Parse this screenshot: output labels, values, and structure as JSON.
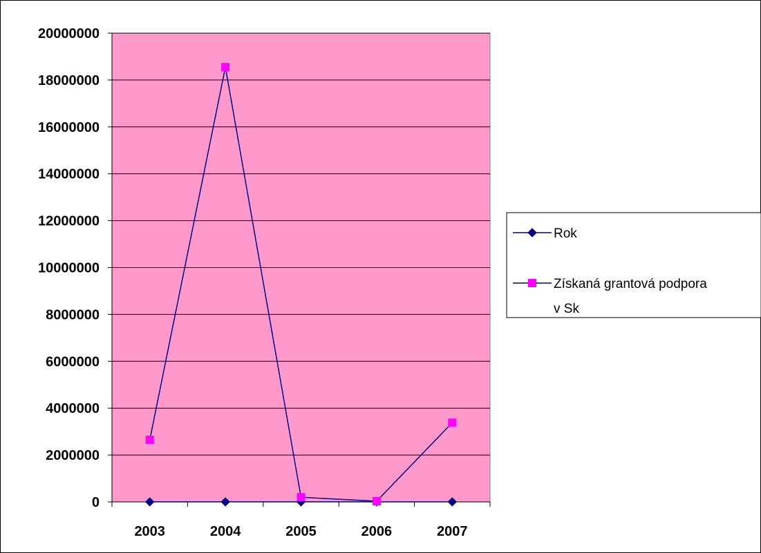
{
  "chart_data": {
    "type": "line",
    "categories": [
      "2003",
      "2004",
      "2005",
      "2006",
      "2007"
    ],
    "ylim": [
      0,
      20000000
    ],
    "yticks": [
      "0",
      "2000000",
      "4000000",
      "6000000",
      "8000000",
      "10000000",
      "12000000",
      "14000000",
      "16000000",
      "18000000",
      "20000000"
    ],
    "grid": true,
    "legend_placement": "right",
    "plot_background": "#FF99CC",
    "series": [
      {
        "name": "Rok",
        "values": [
          2003,
          2004,
          2005,
          2006,
          2007
        ],
        "color": "#000080",
        "marker": "diamond",
        "marker_color": "#000080"
      },
      {
        "name": "Získaná grantová podpora v Sk",
        "name_lines": [
          "Získaná grantová podpora",
          "v Sk"
        ],
        "values": [
          2650000,
          18550000,
          200000,
          30000,
          3380000
        ],
        "color": "#000080",
        "marker": "square",
        "marker_color": "#FF00FF"
      }
    ]
  }
}
